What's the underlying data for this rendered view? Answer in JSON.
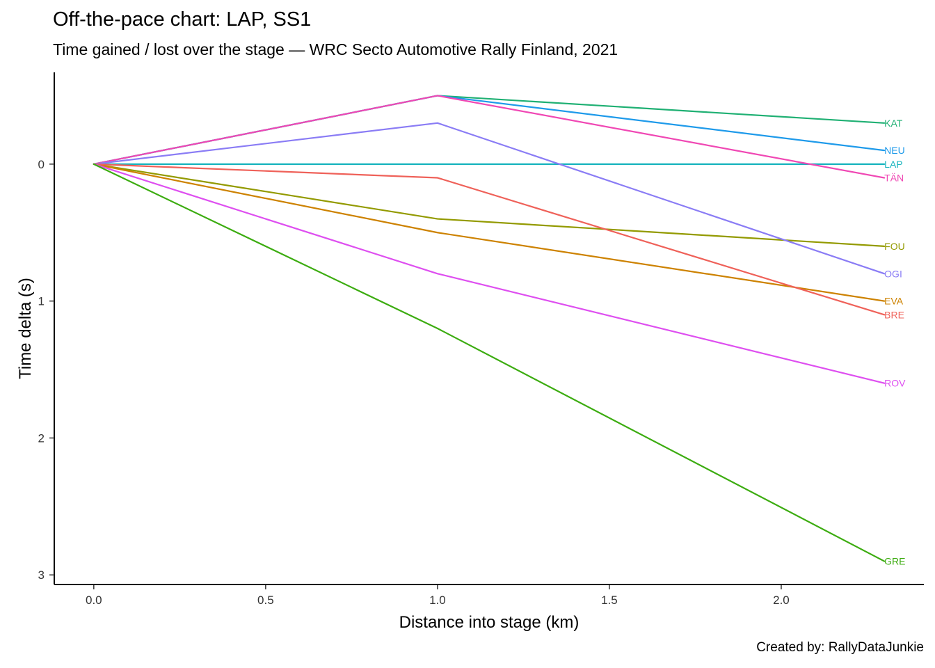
{
  "chart_data": {
    "type": "line",
    "title": "Off-the-pace chart: LAP, SS1",
    "subtitle": "Time gained / lost over the stage — WRC Secto Automotive Rally Finland, 2021",
    "caption": "Created by: RallyDataJunkie",
    "xlabel": "Distance into stage (km)",
    "ylabel": "Time delta (s)",
    "xlim": [
      -0.115,
      2.415
    ],
    "ylim": [
      -0.67,
      3.07
    ],
    "y_reversed": true,
    "xticks": [
      0.0,
      0.5,
      1.0,
      1.5,
      2.0
    ],
    "xtick_labels": [
      "0.0",
      "0.5",
      "1.0",
      "1.5",
      "2.0"
    ],
    "yticks": [
      0,
      1,
      2,
      3
    ],
    "ytick_labels": [
      "0",
      "1",
      "2",
      "3"
    ],
    "grid": false,
    "legend": "none (direct end labels)",
    "x": [
      0.0,
      1.0,
      2.3
    ],
    "series": [
      {
        "name": "KAT",
        "color": "#1fb073",
        "values": [
          0,
          -0.5,
          -0.3
        ]
      },
      {
        "name": "NEU",
        "color": "#1e9aea",
        "values": [
          0,
          -0.5,
          -0.1
        ]
      },
      {
        "name": "LAP",
        "color": "#18b4be",
        "values": [
          0,
          0,
          0
        ]
      },
      {
        "name": "TÄN",
        "color": "#f048b4",
        "values": [
          0,
          -0.5,
          0.1
        ]
      },
      {
        "name": "FOU",
        "color": "#939a00",
        "values": [
          0,
          0.4,
          0.6
        ]
      },
      {
        "name": "OGI",
        "color": "#8a7cf5",
        "values": [
          0,
          -0.3,
          0.8
        ]
      },
      {
        "name": "EVA",
        "color": "#cd8200",
        "values": [
          0,
          0.5,
          1.0
        ]
      },
      {
        "name": "BRE",
        "color": "#ef6159",
        "values": [
          0,
          0.1,
          1.1
        ]
      },
      {
        "name": "ROV",
        "color": "#de4ff0",
        "values": [
          0,
          0.8,
          1.6
        ]
      },
      {
        "name": "GRE",
        "color": "#3cac10",
        "values": [
          0,
          1.2,
          2.9
        ]
      }
    ]
  }
}
